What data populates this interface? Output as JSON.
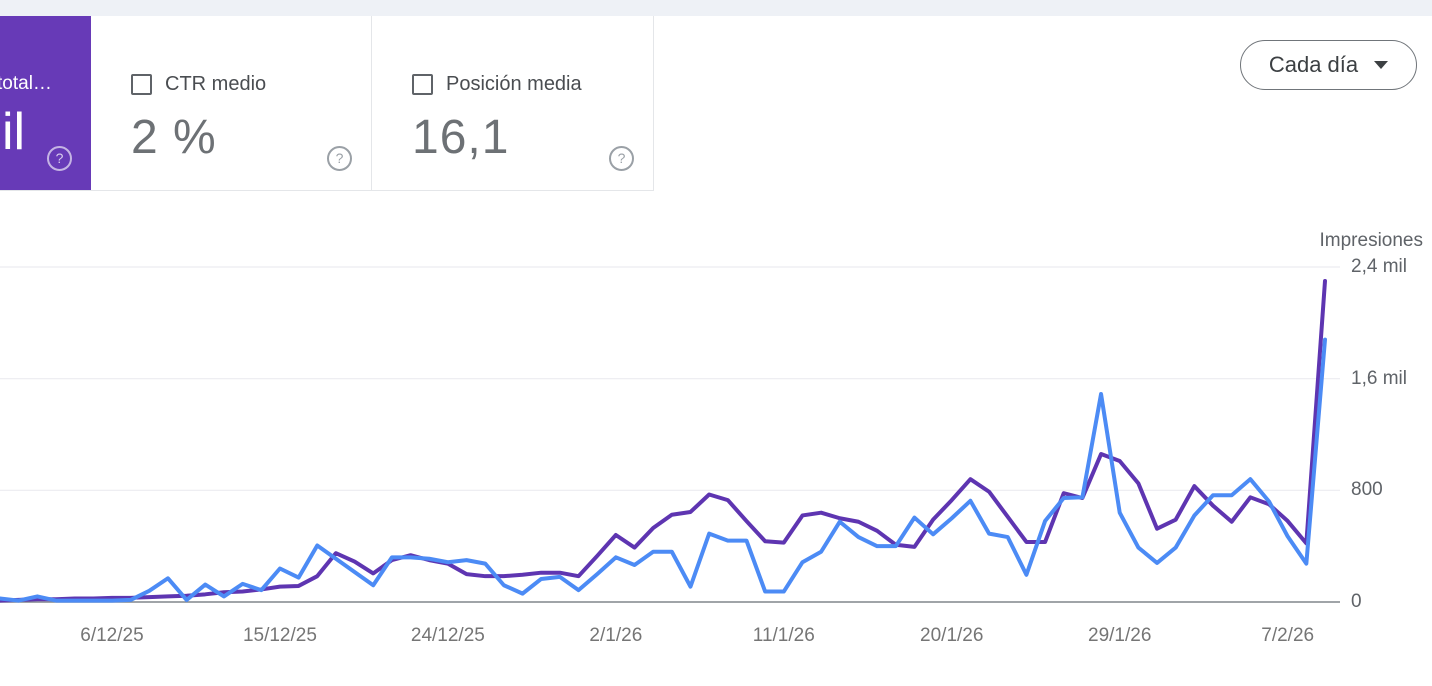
{
  "page": {
    "top_band_color": "#eef1f6",
    "background": "#ffffff"
  },
  "icons": {
    "help": "?",
    "caret": "dropdown-caret"
  },
  "cards": {
    "impressions": {
      "title_fragment": "total…",
      "value_fragment": "il",
      "background": "#673ab7"
    },
    "ctr": {
      "label": "CTR medio",
      "value": "2 %"
    },
    "position": {
      "label": "Posición media",
      "value": "16,1"
    }
  },
  "toolbar": {
    "granularity": "Cada día"
  },
  "colors": {
    "blue_line": "#4c8bf5",
    "purple_line": "#5e35b1",
    "baseline": "#80868b",
    "gridline": "#ececf0"
  },
  "chart_data": {
    "type": "line",
    "title": "",
    "right_axis": {
      "label": "Impresiones",
      "max": 2400,
      "ticks": [
        {
          "label": "2,4 mil",
          "value": 2400
        },
        {
          "label": "1,6 mil",
          "value": 1600
        },
        {
          "label": "800",
          "value": 800
        },
        {
          "label": "0",
          "value": 0
        }
      ]
    },
    "x_axis": {
      "n_points": 72,
      "tick_indices": [
        6,
        15,
        24,
        33,
        42,
        51,
        60,
        69
      ],
      "tick_labels": [
        "6/12/25",
        "15/12/25",
        "24/12/25",
        "2/1/26",
        "11/1/26",
        "20/1/26",
        "29/1/26",
        "7/2/26"
      ]
    },
    "layout": {
      "grid": true,
      "legend": "none",
      "left_axis_hidden": true
    },
    "series": [
      {
        "id": "impressions-line",
        "axis": "right",
        "color": "#5e35b1",
        "values": [
          10,
          15,
          20,
          20,
          25,
          25,
          30,
          30,
          35,
          40,
          45,
          55,
          70,
          75,
          90,
          110,
          115,
          185,
          350,
          290,
          205,
          300,
          335,
          300,
          275,
          200,
          185,
          185,
          195,
          210,
          210,
          185,
          330,
          480,
          390,
          530,
          625,
          645,
          770,
          730,
          580,
          435,
          425,
          620,
          640,
          600,
          575,
          510,
          410,
          395,
          590,
          730,
          880,
          790,
          610,
          430,
          430,
          780,
          745,
          1060,
          1010,
          850,
          525,
          590,
          830,
          690,
          575,
          750,
          700,
          580,
          420,
          2300
        ]
      },
      {
        "id": "clicks-line",
        "axis": "hidden-left",
        "color": "#4c8bf5",
        "values": [
          25,
          10,
          40,
          10,
          10,
          10,
          10,
          15,
          80,
          170,
          15,
          125,
          40,
          130,
          85,
          240,
          175,
          405,
          310,
          215,
          120,
          320,
          320,
          310,
          285,
          300,
          275,
          120,
          60,
          165,
          180,
          85,
          200,
          320,
          265,
          360,
          360,
          110,
          490,
          440,
          440,
          75,
          75,
          285,
          360,
          575,
          465,
          400,
          400,
          605,
          485,
          600,
          725,
          490,
          465,
          195,
          580,
          745,
          750,
          1490,
          640,
          390,
          280,
          390,
          620,
          765,
          765,
          880,
          720,
          470,
          275,
          1880
        ]
      }
    ]
  }
}
